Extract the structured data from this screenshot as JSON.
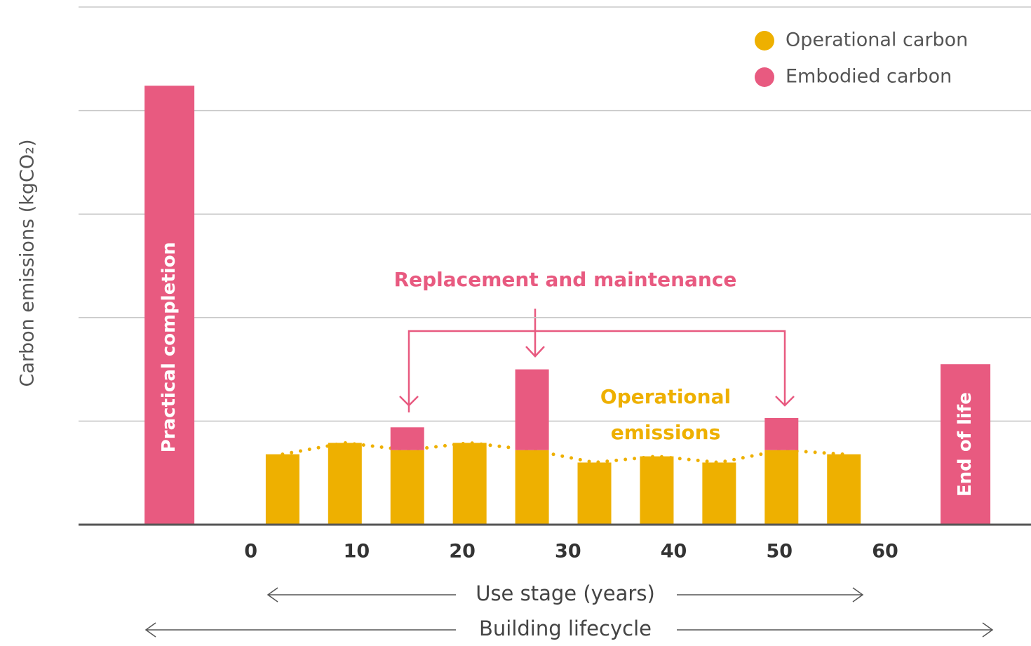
{
  "chart_data": {
    "type": "bar",
    "stacked": true,
    "y_label": "Carbon emissions (kgCO₂)",
    "x": [
      -7.7,
      3,
      8.9,
      14.8,
      20.7,
      26.6,
      32.5,
      38.4,
      44.3,
      50.2,
      56.1,
      67.6
    ],
    "bar_labels": [
      "Practical completion",
      null,
      null,
      null,
      null,
      null,
      null,
      null,
      null,
      null,
      null,
      "End of life"
    ],
    "series": [
      {
        "name": "Operational carbon",
        "color": "#eeb000",
        "values": [
          null,
          0.68,
          0.79,
          0.72,
          0.79,
          0.72,
          0.6,
          0.66,
          0.6,
          0.72,
          0.68,
          null
        ]
      },
      {
        "name": "Embodied carbon",
        "color": "#e85a80",
        "values": [
          4.24,
          null,
          null,
          0.22,
          null,
          0.78,
          null,
          null,
          null,
          0.31,
          null,
          1.55
        ]
      }
    ],
    "xlim": [
      -16.3,
      73.8
    ],
    "xticks": [
      0,
      10,
      20,
      30,
      40,
      50,
      60
    ],
    "ylim": [
      0,
      5
    ],
    "yticks": [
      0,
      1,
      2,
      3,
      4,
      5
    ],
    "ytick_labels": false,
    "grid": true,
    "legend": "upper right",
    "annotations": [
      {
        "text": "Replacement and maintenance",
        "color": "#e85a80"
      },
      {
        "lines": [
          "Operational",
          "emissions"
        ],
        "color": "#eeb000"
      }
    ],
    "spans": [
      "Use stage (years)",
      "Building lifecycle"
    ]
  }
}
